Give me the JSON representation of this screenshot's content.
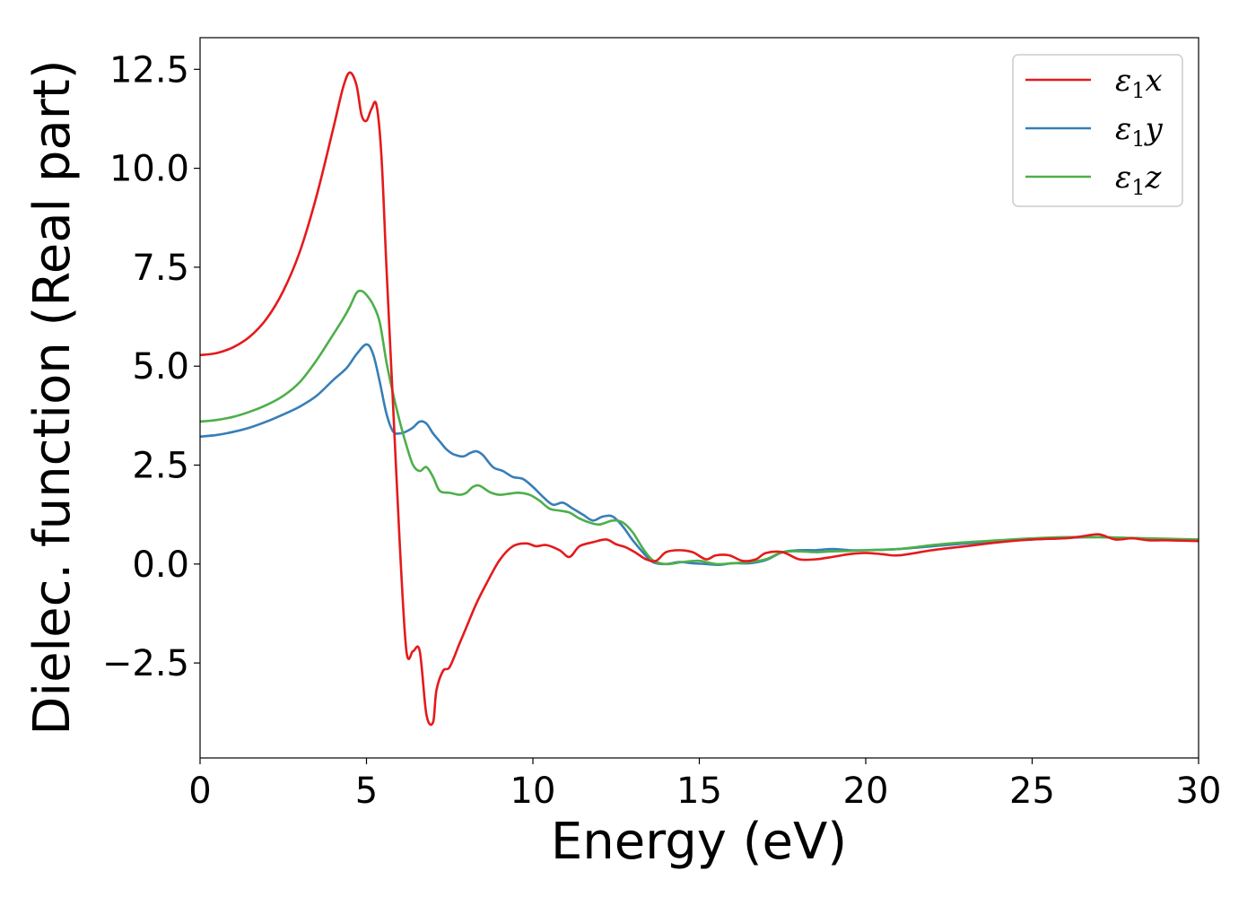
{
  "chart_data": {
    "type": "line",
    "title": "",
    "xlabel": "Energy (eV)",
    "ylabel": "Dielec. function (Real part)",
    "xlim": [
      0,
      30
    ],
    "ylim": [
      -4.9,
      13.3
    ],
    "xticks": [
      0,
      5,
      10,
      15,
      20,
      25,
      30
    ],
    "xtick_labels": [
      "0",
      "5",
      "10",
      "15",
      "20",
      "25",
      "30"
    ],
    "yticks": [
      -2.5,
      0.0,
      2.5,
      5.0,
      7.5,
      10.0,
      12.5
    ],
    "ytick_labels": [
      "−2.5",
      "0.0",
      "2.5",
      "5.0",
      "7.5",
      "10.0",
      "12.5"
    ],
    "grid": false,
    "legend_position": "top-right",
    "series": [
      {
        "name": "ε₁x",
        "legend": {
          "base": "ε",
          "sub": "1",
          "suffix": "x"
        },
        "color": "#e41a1c",
        "x": [
          0,
          0.5,
          1,
          1.5,
          2,
          2.5,
          3,
          3.5,
          4,
          4.3,
          4.5,
          4.7,
          4.85,
          5.0,
          5.15,
          5.3,
          5.45,
          5.6,
          5.8,
          6.0,
          6.2,
          6.4,
          6.6,
          6.8,
          7.0,
          7.1,
          7.3,
          7.5,
          7.8,
          8.0,
          8.3,
          8.6,
          9.0,
          9.4,
          9.8,
          10.1,
          10.4,
          10.8,
          11.1,
          11.4,
          11.8,
          12.2,
          12.5,
          12.8,
          13.1,
          13.4,
          13.7,
          14.0,
          14.4,
          14.8,
          15.2,
          15.5,
          15.9,
          16.3,
          16.7,
          17.0,
          17.5,
          18.0,
          18.5,
          19.0,
          19.5,
          20.0,
          20.5,
          21.0,
          22.0,
          23.0,
          24.0,
          25.0,
          26.0,
          26.5,
          27.0,
          27.5,
          28.0,
          28.5,
          29.0,
          30.0
        ],
        "y": [
          5.28,
          5.33,
          5.48,
          5.75,
          6.2,
          6.9,
          7.9,
          9.3,
          11.0,
          12.05,
          12.42,
          12.1,
          11.35,
          11.2,
          11.5,
          11.6,
          10.3,
          7.5,
          4.0,
          0.5,
          -2.2,
          -2.2,
          -2.2,
          -3.8,
          -4.0,
          -3.2,
          -2.7,
          -2.6,
          -2.0,
          -1.6,
          -1.0,
          -0.5,
          0.1,
          0.45,
          0.52,
          0.45,
          0.48,
          0.35,
          0.18,
          0.45,
          0.55,
          0.62,
          0.5,
          0.42,
          0.28,
          0.12,
          0.08,
          0.3,
          0.35,
          0.3,
          0.12,
          0.22,
          0.22,
          0.08,
          0.12,
          0.28,
          0.3,
          0.12,
          0.12,
          0.18,
          0.25,
          0.28,
          0.25,
          0.22,
          0.35,
          0.45,
          0.55,
          0.62,
          0.65,
          0.7,
          0.75,
          0.62,
          0.65,
          0.6,
          0.6,
          0.58
        ]
      },
      {
        "name": "ε₁y",
        "legend": {
          "base": "ε",
          "sub": "1",
          "suffix": "y"
        },
        "color": "#377eb8",
        "x": [
          0,
          0.5,
          1,
          1.5,
          2,
          2.5,
          3,
          3.5,
          4,
          4.4,
          4.7,
          5.0,
          5.2,
          5.4,
          5.6,
          5.8,
          6.0,
          6.2,
          6.4,
          6.6,
          6.8,
          7.0,
          7.2,
          7.4,
          7.6,
          7.9,
          8.1,
          8.3,
          8.5,
          8.8,
          9.1,
          9.4,
          9.7,
          10.0,
          10.3,
          10.6,
          10.9,
          11.2,
          11.5,
          11.8,
          12.1,
          12.4,
          12.7,
          13.0,
          13.3,
          13.6,
          14.0,
          14.4,
          14.8,
          15.2,
          15.6,
          16.0,
          16.5,
          17.0,
          17.5,
          18.0,
          18.5,
          19.0,
          19.5,
          20.0,
          21.0,
          22.0,
          23.0,
          24.0,
          25.0,
          26.0,
          27.0,
          28.0,
          29.0,
          30.0
        ],
        "y": [
          3.22,
          3.26,
          3.34,
          3.45,
          3.6,
          3.78,
          3.98,
          4.25,
          4.65,
          4.95,
          5.3,
          5.55,
          5.3,
          4.6,
          3.8,
          3.35,
          3.3,
          3.35,
          3.45,
          3.6,
          3.55,
          3.3,
          3.1,
          2.9,
          2.78,
          2.72,
          2.8,
          2.85,
          2.75,
          2.45,
          2.35,
          2.2,
          2.15,
          1.95,
          1.7,
          1.5,
          1.55,
          1.4,
          1.25,
          1.1,
          1.2,
          1.2,
          0.95,
          0.6,
          0.3,
          0.05,
          0.0,
          0.05,
          0.02,
          0.0,
          -0.02,
          0.02,
          0.02,
          0.1,
          0.3,
          0.35,
          0.35,
          0.38,
          0.35,
          0.35,
          0.38,
          0.45,
          0.52,
          0.58,
          0.62,
          0.66,
          0.68,
          0.65,
          0.62,
          0.6
        ]
      },
      {
        "name": "ε₁z",
        "legend": {
          "base": "ε",
          "sub": "1",
          "suffix": "z"
        },
        "color": "#4daf4a",
        "x": [
          0,
          0.5,
          1,
          1.5,
          2,
          2.5,
          3,
          3.5,
          4,
          4.3,
          4.5,
          4.7,
          4.85,
          5.0,
          5.2,
          5.4,
          5.6,
          5.8,
          6.0,
          6.2,
          6.4,
          6.6,
          6.8,
          7.0,
          7.2,
          7.5,
          7.8,
          8.0,
          8.2,
          8.4,
          8.7,
          9.0,
          9.3,
          9.6,
          9.9,
          10.2,
          10.5,
          10.8,
          11.1,
          11.4,
          11.7,
          12.0,
          12.4,
          12.7,
          13.0,
          13.3,
          13.6,
          14.0,
          14.5,
          15.0,
          15.5,
          16.0,
          16.5,
          17.0,
          17.5,
          18.0,
          18.5,
          19.0,
          19.5,
          20.0,
          21.0,
          22.0,
          23.0,
          24.0,
          25.0,
          26.0,
          27.0,
          28.0,
          29.0,
          30.0
        ],
        "y": [
          3.6,
          3.64,
          3.72,
          3.85,
          4.02,
          4.25,
          4.6,
          5.15,
          5.8,
          6.2,
          6.5,
          6.85,
          6.9,
          6.8,
          6.55,
          6.1,
          5.1,
          4.3,
          3.6,
          3.0,
          2.5,
          2.35,
          2.45,
          2.2,
          1.85,
          1.8,
          1.75,
          1.8,
          1.95,
          1.98,
          1.82,
          1.75,
          1.78,
          1.8,
          1.75,
          1.6,
          1.4,
          1.35,
          1.3,
          1.15,
          1.05,
          1.0,
          1.1,
          1.05,
          0.8,
          0.4,
          0.1,
          0.0,
          0.05,
          0.08,
          0.0,
          0.02,
          0.05,
          0.12,
          0.3,
          0.32,
          0.3,
          0.32,
          0.33,
          0.35,
          0.38,
          0.48,
          0.55,
          0.6,
          0.65,
          0.68,
          0.68,
          0.66,
          0.64,
          0.62
        ]
      }
    ]
  }
}
